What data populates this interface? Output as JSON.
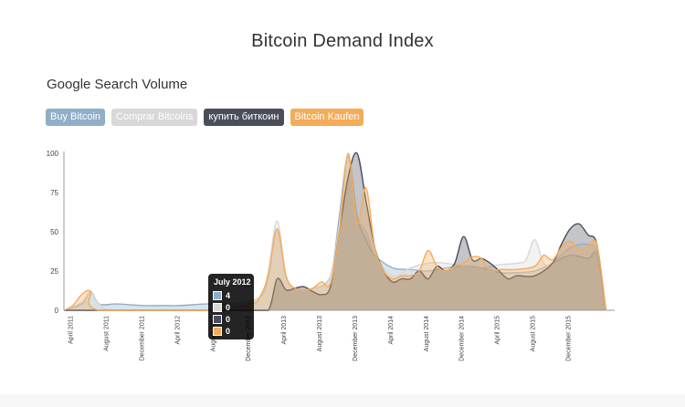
{
  "title": "Bitcoin Demand Index",
  "subtitle": "Google Search Volume",
  "legend": [
    {
      "label": "Buy Bitcoin",
      "color": "#90aec7"
    },
    {
      "label": "Comprar Bitcoins",
      "color": "#d8d8d8"
    },
    {
      "label": "купить биткоин",
      "color": "#4a4e5a"
    },
    {
      "label": "Bitcoin Kaufen",
      "color": "#f5ac58"
    }
  ],
  "tooltip": {
    "title": "July 2012",
    "rows": [
      {
        "value": "4",
        "color": "#90aec7"
      },
      {
        "value": "0",
        "color": "#d8d8d8"
      },
      {
        "value": "0",
        "color": "#4a4e5a"
      },
      {
        "value": "0",
        "color": "#f5ac58"
      }
    ]
  },
  "chart_data": {
    "type": "area",
    "title": "Bitcoin Demand Index",
    "subtitle": "Google Search Volume",
    "ylim": [
      0,
      100
    ],
    "yticks": [
      0,
      25,
      50,
      75,
      100
    ],
    "xlim": [
      "2011-03",
      "2016-05"
    ],
    "xticks": [
      "April 2011",
      "August 2011",
      "December 2011",
      "April 2012",
      "August 2012",
      "December 2012",
      "April 2013",
      "August 2013",
      "December 2013",
      "April 2014",
      "August 2014",
      "December 2014",
      "April 2015",
      "August 2015",
      "December 2015"
    ],
    "legend_position": "top-left",
    "grid": false,
    "series": [
      {
        "name": "Buy Bitcoin",
        "color": "#90aec7",
        "points": [
          [
            "2011-03",
            0
          ],
          [
            "2011-05",
            4
          ],
          [
            "2011-06",
            12
          ],
          [
            "2011-07",
            4
          ],
          [
            "2011-09",
            4
          ],
          [
            "2011-12",
            3
          ],
          [
            "2012-02",
            3
          ],
          [
            "2012-04",
            3
          ],
          [
            "2012-07",
            4
          ],
          [
            "2012-10",
            4
          ],
          [
            "2013-01",
            8
          ],
          [
            "2013-02",
            22
          ],
          [
            "2013-03",
            52
          ],
          [
            "2013-04",
            22
          ],
          [
            "2013-05",
            14
          ],
          [
            "2013-07",
            14
          ],
          [
            "2013-09",
            22
          ],
          [
            "2013-10",
            60
          ],
          [
            "2013-11",
            98
          ],
          [
            "2013-12",
            60
          ],
          [
            "2014-01",
            45
          ],
          [
            "2014-02",
            35
          ],
          [
            "2014-04",
            27
          ],
          [
            "2014-06",
            26
          ],
          [
            "2014-08",
            25
          ],
          [
            "2014-10",
            27
          ],
          [
            "2014-12",
            28
          ],
          [
            "2015-02",
            27
          ],
          [
            "2015-04",
            24
          ],
          [
            "2015-06",
            24
          ],
          [
            "2015-08",
            25
          ],
          [
            "2015-10",
            30
          ],
          [
            "2015-12",
            35
          ],
          [
            "2016-02",
            33
          ],
          [
            "2016-03",
            35
          ],
          [
            "2016-04",
            0
          ]
        ]
      },
      {
        "name": "Comprar Bitcoins",
        "color": "#d8d8d8",
        "points": [
          [
            "2011-03",
            0
          ],
          [
            "2011-05",
            5
          ],
          [
            "2011-06",
            12
          ],
          [
            "2011-07",
            4
          ],
          [
            "2011-09",
            0
          ],
          [
            "2012-07",
            0
          ],
          [
            "2012-10",
            4
          ],
          [
            "2013-01",
            8
          ],
          [
            "2013-02",
            25
          ],
          [
            "2013-03",
            57
          ],
          [
            "2013-04",
            22
          ],
          [
            "2013-05",
            14
          ],
          [
            "2013-07",
            14
          ],
          [
            "2013-09",
            22
          ],
          [
            "2013-10",
            55
          ],
          [
            "2013-11",
            95
          ],
          [
            "2013-12",
            60
          ],
          [
            "2014-01",
            50
          ],
          [
            "2014-02",
            35
          ],
          [
            "2014-04",
            22
          ],
          [
            "2014-06",
            27
          ],
          [
            "2014-08",
            30
          ],
          [
            "2014-10",
            30
          ],
          [
            "2014-12",
            28
          ],
          [
            "2015-02",
            27
          ],
          [
            "2015-04",
            29
          ],
          [
            "2015-06",
            30
          ],
          [
            "2015-07",
            32
          ],
          [
            "2015-08",
            45
          ],
          [
            "2015-09",
            30
          ],
          [
            "2015-10",
            30
          ],
          [
            "2015-12",
            40
          ],
          [
            "2016-02",
            42
          ],
          [
            "2016-03",
            36
          ],
          [
            "2016-04",
            0
          ]
        ]
      },
      {
        "name": "купить биткоин",
        "color": "#4a4e5a",
        "points": [
          [
            "2011-03",
            0
          ],
          [
            "2012-07",
            0
          ],
          [
            "2012-12",
            0
          ],
          [
            "2013-02",
            0
          ],
          [
            "2013-03",
            20
          ],
          [
            "2013-04",
            13
          ],
          [
            "2013-05",
            14
          ],
          [
            "2013-06",
            15
          ],
          [
            "2013-07",
            12
          ],
          [
            "2013-08",
            10
          ],
          [
            "2013-09",
            15
          ],
          [
            "2013-10",
            50
          ],
          [
            "2013-11",
            85
          ],
          [
            "2013-12",
            100
          ],
          [
            "2014-01",
            70
          ],
          [
            "2014-02",
            40
          ],
          [
            "2014-03",
            25
          ],
          [
            "2014-04",
            18
          ],
          [
            "2014-05",
            20
          ],
          [
            "2014-06",
            20
          ],
          [
            "2014-07",
            25
          ],
          [
            "2014-08",
            20
          ],
          [
            "2014-09",
            28
          ],
          [
            "2014-10",
            25
          ],
          [
            "2014-11",
            30
          ],
          [
            "2014-12",
            47
          ],
          [
            "2015-01",
            32
          ],
          [
            "2015-02",
            33
          ],
          [
            "2015-03",
            30
          ],
          [
            "2015-04",
            25
          ],
          [
            "2015-05",
            20
          ],
          [
            "2015-06",
            22
          ],
          [
            "2015-08",
            22
          ],
          [
            "2015-10",
            30
          ],
          [
            "2015-11",
            42
          ],
          [
            "2015-12",
            52
          ],
          [
            "2016-01",
            55
          ],
          [
            "2016-02",
            48
          ],
          [
            "2016-03",
            42
          ],
          [
            "2016-04",
            0
          ]
        ]
      },
      {
        "name": "Bitcoin Kaufen",
        "color": "#f5ac58",
        "points": [
          [
            "2011-03",
            0
          ],
          [
            "2011-04",
            3
          ],
          [
            "2011-05",
            10
          ],
          [
            "2011-06",
            12
          ],
          [
            "2011-07",
            0
          ],
          [
            "2012-07",
            0
          ],
          [
            "2012-12",
            4
          ],
          [
            "2013-01",
            8
          ],
          [
            "2013-02",
            22
          ],
          [
            "2013-03",
            52
          ],
          [
            "2013-04",
            22
          ],
          [
            "2013-05",
            14
          ],
          [
            "2013-06",
            13
          ],
          [
            "2013-07",
            14
          ],
          [
            "2013-08",
            18
          ],
          [
            "2013-09",
            17
          ],
          [
            "2013-10",
            50
          ],
          [
            "2013-11",
            100
          ],
          [
            "2013-12",
            55
          ],
          [
            "2014-01",
            78
          ],
          [
            "2014-02",
            40
          ],
          [
            "2014-03",
            25
          ],
          [
            "2014-04",
            20
          ],
          [
            "2014-05",
            22
          ],
          [
            "2014-06",
            22
          ],
          [
            "2014-07",
            25
          ],
          [
            "2014-08",
            38
          ],
          [
            "2014-09",
            28
          ],
          [
            "2014-10",
            25
          ],
          [
            "2014-11",
            28
          ],
          [
            "2014-12",
            30
          ],
          [
            "2015-01",
            34
          ],
          [
            "2015-02",
            33
          ],
          [
            "2015-03",
            25
          ],
          [
            "2015-04",
            26
          ],
          [
            "2015-06",
            26
          ],
          [
            "2015-08",
            28
          ],
          [
            "2015-09",
            35
          ],
          [
            "2015-10",
            32
          ],
          [
            "2015-11",
            40
          ],
          [
            "2015-12",
            44
          ],
          [
            "2016-01",
            38
          ],
          [
            "2016-02",
            40
          ],
          [
            "2016-03",
            42
          ],
          [
            "2016-04",
            0
          ]
        ]
      }
    ]
  }
}
